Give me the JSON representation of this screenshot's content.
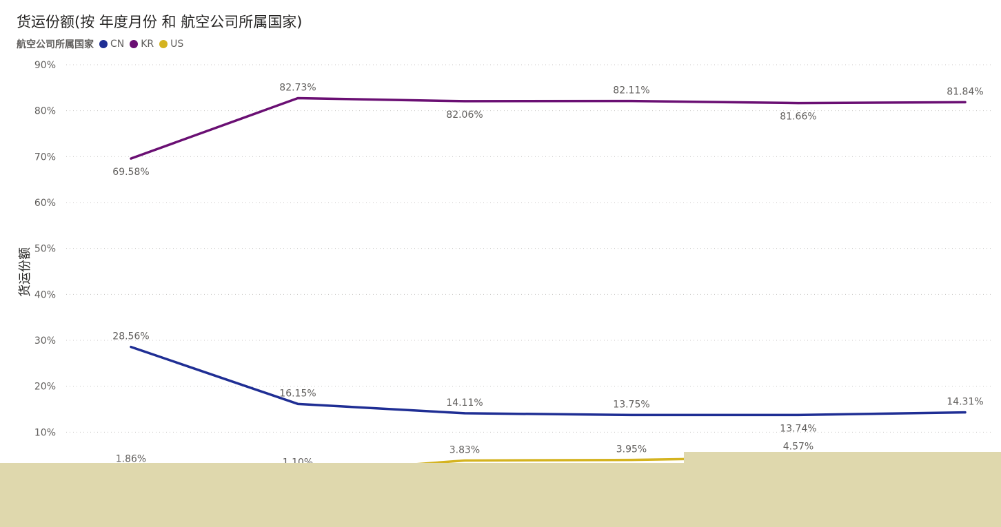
{
  "chart_data": {
    "type": "line",
    "title": "货运份额(按 年度月份 和 航空公司所属国家)",
    "ylabel": "货运份额",
    "xlabel": "",
    "ylim": [
      0,
      90
    ],
    "yticks": [
      "10%",
      "20%",
      "30%",
      "40%",
      "50%",
      "60%",
      "70%",
      "80%",
      "90%"
    ],
    "ytick_values": [
      10,
      20,
      30,
      40,
      50,
      60,
      70,
      80,
      90
    ],
    "grid": true,
    "legend": {
      "title": "航空公司所属国家",
      "placement": "top-left"
    },
    "points": 6,
    "series": [
      {
        "name": "CN",
        "color": "#1f2e94",
        "values": [
          28.56,
          16.15,
          14.11,
          13.75,
          13.74,
          14.31
        ],
        "labels": [
          "28.56%",
          "16.15%",
          "14.11%",
          "13.75%",
          "13.74%",
          "14.31%"
        ],
        "label_pos": [
          "above",
          "above",
          "above",
          "above",
          "below",
          "above"
        ]
      },
      {
        "name": "KR",
        "color": "#6a0f73",
        "values": [
          69.58,
          82.73,
          82.06,
          82.11,
          81.66,
          81.84
        ],
        "labels": [
          "69.58%",
          "82.73%",
          "82.06%",
          "82.11%",
          "81.66%",
          "81.84%"
        ],
        "label_pos": [
          "below",
          "above",
          "below",
          "above",
          "below",
          "above"
        ]
      },
      {
        "name": "US",
        "color": "#d4b320",
        "values": [
          1.86,
          1.1,
          3.83,
          3.95,
          4.57,
          null
        ],
        "labels": [
          "1.86%",
          "1.10%",
          "3.83%",
          "3.95%",
          "4.57%",
          ""
        ],
        "label_pos": [
          "above",
          "above",
          "above",
          "above",
          "above",
          "above"
        ]
      }
    ]
  }
}
